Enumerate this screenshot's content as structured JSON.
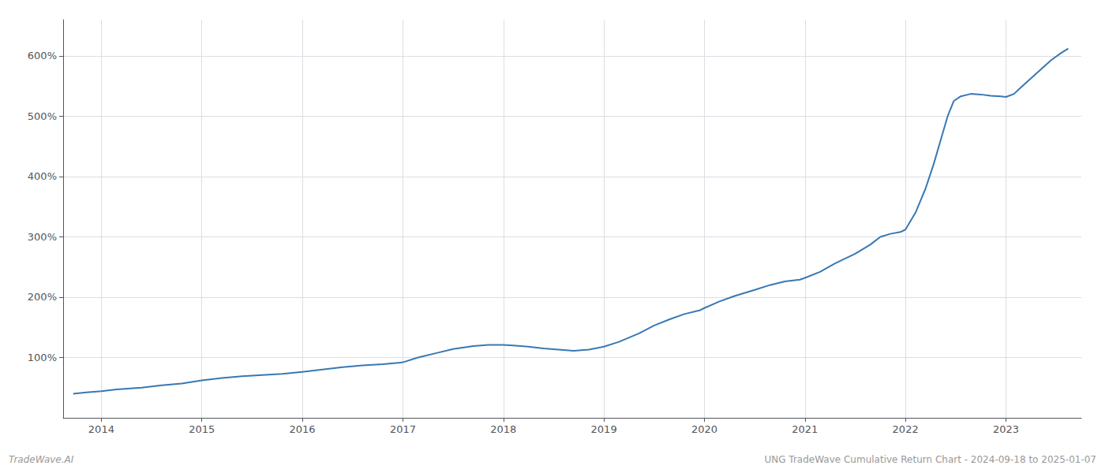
{
  "chart_data": {
    "type": "line",
    "title": "UNG TradeWave Cumulative Return Chart - 2024-09-18 to 2025-01-07",
    "annotations": [
      "TradeWave.AI"
    ],
    "color": "#3878b4",
    "grid": true,
    "x": [
      2013.72,
      2013.85,
      2014.0,
      2014.15,
      2014.4,
      2014.6,
      2014.8,
      2015.0,
      2015.2,
      2015.4,
      2015.6,
      2015.8,
      2016.0,
      2016.2,
      2016.4,
      2016.6,
      2016.8,
      2017.0,
      2017.15,
      2017.35,
      2017.5,
      2017.7,
      2017.85,
      2018.0,
      2018.1,
      2018.25,
      2018.4,
      2018.55,
      2018.7,
      2018.85,
      2019.0,
      2019.15,
      2019.35,
      2019.5,
      2019.65,
      2019.8,
      2019.95,
      2020.0,
      2020.15,
      2020.3,
      2020.5,
      2020.65,
      2020.8,
      2020.95,
      2021.0,
      2021.15,
      2021.3,
      2021.5,
      2021.65,
      2021.75,
      2021.85,
      2021.95,
      2022.0,
      2022.1,
      2022.2,
      2022.28,
      2022.35,
      2022.42,
      2022.48,
      2022.55,
      2022.65,
      2022.75,
      2022.85,
      2022.95,
      2023.0,
      2023.08,
      2023.15,
      2023.25,
      2023.35,
      2023.45,
      2023.55,
      2023.62
    ],
    "values": [
      40,
      42,
      44,
      47,
      50,
      54,
      57,
      62,
      66,
      69,
      71,
      73,
      76,
      80,
      84,
      87,
      89,
      92,
      100,
      108,
      114,
      119,
      121,
      121,
      120,
      118,
      115,
      113,
      111,
      113,
      118,
      126,
      140,
      153,
      163,
      172,
      178,
      182,
      193,
      202,
      212,
      220,
      226,
      229,
      232,
      242,
      256,
      272,
      287,
      300,
      305,
      308,
      312,
      340,
      380,
      420,
      460,
      500,
      525,
      533,
      537,
      536,
      534,
      533,
      532,
      537,
      548,
      563,
      578,
      593,
      605,
      612
    ],
    "xlim": [
      2013.62,
      2023.75
    ],
    "xticks": [
      2014,
      2015,
      2016,
      2017,
      2018,
      2019,
      2020,
      2021,
      2022,
      2023
    ],
    "ylim": [
      0,
      660
    ],
    "yticks": [
      {
        "value": 100,
        "label": "100%"
      },
      {
        "value": 200,
        "label": "200%"
      },
      {
        "value": 300,
        "label": "300%"
      },
      {
        "value": 400,
        "label": "400%"
      },
      {
        "value": 500,
        "label": "500%"
      },
      {
        "value": 600,
        "label": "600%"
      }
    ]
  }
}
